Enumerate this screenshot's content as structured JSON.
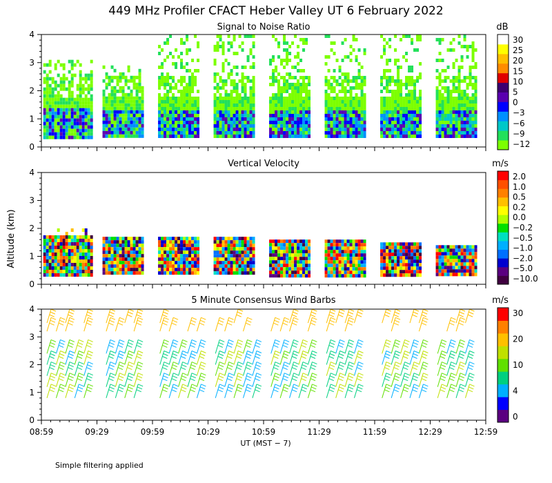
{
  "title": "449 MHz Profiler CFACT Heber Valley UT  6 February 2022",
  "xlabel": "UT  (MST − 7)",
  "ylabel": "Altitude (km)",
  "footnote": "Simple filtering applied",
  "x_ticks": [
    "08:59",
    "09:29",
    "09:59",
    "10:29",
    "10:59",
    "11:29",
    "11:59",
    "12:29",
    "12:59"
  ],
  "y_ticks": [
    "0",
    "1",
    "2",
    "3",
    "4"
  ],
  "colors": {
    "snr": [
      "#7cff00",
      "#22e05a",
      "#00c8c8",
      "#0090ff",
      "#0000ff",
      "#5a00b0",
      "#3c0070",
      "#e00000",
      "#ff8c00",
      "#ffc000",
      "#ffff00",
      "#ffffff"
    ],
    "vel": [
      "#400040",
      "#5a0080",
      "#0000d0",
      "#0070ff",
      "#00b0ff",
      "#00e0c0",
      "#00e000",
      "#b0ff00",
      "#ffff00",
      "#ffc000",
      "#ff8000",
      "#ff5000",
      "#ff0000"
    ],
    "wind": [
      "#5a0080",
      "#0000ff",
      "#00b0ff",
      "#00d080",
      "#60e000",
      "#c0e000",
      "#ffc000",
      "#ff8000",
      "#ff0000"
    ]
  },
  "chart_data": [
    {
      "type": "heatmap",
      "title": "Signal to Noise Ratio",
      "unit": "dB",
      "colorbar_labels": [
        "30",
        "25",
        "20",
        "15",
        "10",
        "5",
        "0",
        "−3",
        "−6",
        "−9",
        "−12"
      ],
      "x_range": [
        "08:59",
        "12:59"
      ],
      "ylim": [
        0,
        4
      ],
      "blocks": [
        {
          "t0": "09:00",
          "t1": "09:26",
          "h0": 0.35,
          "h1": 3.1
        },
        {
          "t0": "09:32",
          "t1": "09:54",
          "h0": 0.35,
          "h1": 2.9
        },
        {
          "t0": "10:02",
          "t1": "10:24",
          "h0": 0.35,
          "h1": 4.0
        },
        {
          "t0": "10:32",
          "t1": "10:54",
          "h0": 0.35,
          "h1": 4.0
        },
        {
          "t0": "11:02",
          "t1": "11:24",
          "h0": 0.35,
          "h1": 4.0
        },
        {
          "t0": "11:32",
          "t1": "11:54",
          "h0": 0.35,
          "h1": 4.0
        },
        {
          "t0": "12:02",
          "t1": "12:24",
          "h0": 0.35,
          "h1": 4.0
        },
        {
          "t0": "12:32",
          "t1": "12:54",
          "h0": 0.35,
          "h1": 4.0
        }
      ]
    },
    {
      "type": "heatmap",
      "title": "Vertical Velocity",
      "unit": "m/s",
      "colorbar_labels": [
        "2.0",
        "1.0",
        "0.5",
        "0.2",
        "0.0",
        "−0.2",
        "−0.5",
        "−1.0",
        "−2.0",
        "−5.0",
        "−10.0"
      ],
      "x_range": [
        "08:59",
        "12:59"
      ],
      "ylim": [
        0,
        4
      ],
      "blocks": [
        {
          "t0": "09:00",
          "t1": "09:26",
          "h0": 0.35,
          "h1": 2.0
        },
        {
          "t0": "09:32",
          "t1": "09:54",
          "h0": 0.35,
          "h1": 1.7
        },
        {
          "t0": "10:02",
          "t1": "10:24",
          "h0": 0.35,
          "h1": 1.7
        },
        {
          "t0": "10:32",
          "t1": "10:54",
          "h0": 0.35,
          "h1": 1.7
        },
        {
          "t0": "11:02",
          "t1": "11:24",
          "h0": 0.35,
          "h1": 1.6
        },
        {
          "t0": "11:32",
          "t1": "11:54",
          "h0": 0.35,
          "h1": 1.6
        },
        {
          "t0": "12:02",
          "t1": "12:24",
          "h0": 0.35,
          "h1": 1.5
        },
        {
          "t0": "12:32",
          "t1": "12:54",
          "h0": 0.35,
          "h1": 1.4
        }
      ]
    },
    {
      "type": "scatter",
      "title": "5 Minute Consensus Wind Barbs",
      "unit": "m/s",
      "colorbar_labels": [
        "30",
        "20",
        "10",
        "4",
        "0"
      ],
      "x_range": [
        "08:59",
        "12:59"
      ],
      "ylim": [
        0,
        4
      ],
      "barb_columns": [
        "09:02",
        "09:07",
        "09:12",
        "09:17",
        "09:22",
        "09:34",
        "09:39",
        "09:44",
        "09:49",
        "10:03",
        "10:08",
        "10:13",
        "10:18",
        "10:23",
        "10:33",
        "10:38",
        "10:43",
        "10:48",
        "10:53",
        "11:03",
        "11:08",
        "11:13",
        "11:18",
        "11:23",
        "11:33",
        "11:38",
        "11:43",
        "11:48",
        "12:03",
        "12:08",
        "12:13",
        "12:18",
        "12:23",
        "12:33",
        "12:38",
        "12:43",
        "12:48"
      ],
      "barb_altitudes": [
        0.8,
        1.2,
        1.6,
        2.0,
        2.4,
        3.2,
        3.5
      ]
    }
  ]
}
